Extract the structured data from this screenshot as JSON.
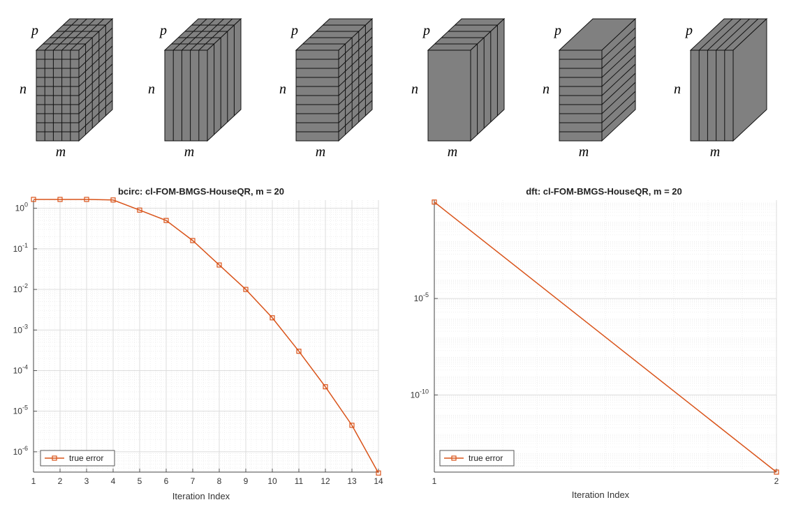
{
  "cubes": [
    {
      "labels": {
        "p": "p",
        "n": "n",
        "m": "m"
      }
    },
    {
      "labels": {
        "p": "p",
        "n": "n",
        "m": "m"
      }
    },
    {
      "labels": {
        "p": "p",
        "n": "n",
        "m": "m"
      }
    },
    {
      "labels": {
        "p": "p",
        "n": "n",
        "m": "m"
      }
    },
    {
      "labels": {
        "p": "p",
        "n": "n",
        "m": "m"
      }
    },
    {
      "labels": {
        "p": "p",
        "n": "n",
        "m": "m"
      }
    }
  ],
  "chart_data": [
    {
      "type": "line",
      "title": "bcirc: cl-FOM-BMGS-HouseQR, m = 20",
      "xlabel": "Iteration Index",
      "ylabel": "",
      "yscale": "log",
      "xlim": [
        1,
        14
      ],
      "ylim_exp": [
        -6.5,
        0.2
      ],
      "grid": true,
      "minor_grid": true,
      "legend_position": "bottom-left",
      "x_ticks": [
        "1",
        "2",
        "3",
        "4",
        "5",
        "6",
        "7",
        "8",
        "9",
        "10",
        "11",
        "12",
        "13",
        "14"
      ],
      "y_tick_exponents": [
        "0",
        "-1",
        "-2",
        "-3",
        "-4",
        "-5",
        "-6"
      ],
      "series": [
        {
          "name": "true error",
          "color": "#d95319",
          "marker": "square",
          "x": [
            1,
            2,
            3,
            4,
            5,
            6,
            7,
            8,
            9,
            10,
            11,
            12,
            13,
            14
          ],
          "y": [
            1.65,
            1.65,
            1.65,
            1.6,
            0.9,
            0.5,
            0.16,
            0.04,
            0.01,
            0.002,
            0.0003,
            4e-05,
            4.5e-06,
            3e-07
          ]
        }
      ]
    },
    {
      "type": "line",
      "title": "dft: cl-FOM-BMGS-HouseQR, m = 20",
      "xlabel": "Iteration Index",
      "ylabel": "",
      "yscale": "log",
      "xlim": [
        1,
        2
      ],
      "ylim_exp": [
        -14,
        0.1
      ],
      "grid": true,
      "minor_grid": true,
      "legend_position": "bottom-left",
      "x_ticks": [
        "1",
        "2"
      ],
      "y_tick_exponents": [
        "-5",
        "-10"
      ],
      "series": [
        {
          "name": "true error",
          "color": "#d95319",
          "marker": "square",
          "x": [
            1,
            2
          ],
          "y": [
            1,
            1e-14
          ]
        }
      ]
    }
  ]
}
